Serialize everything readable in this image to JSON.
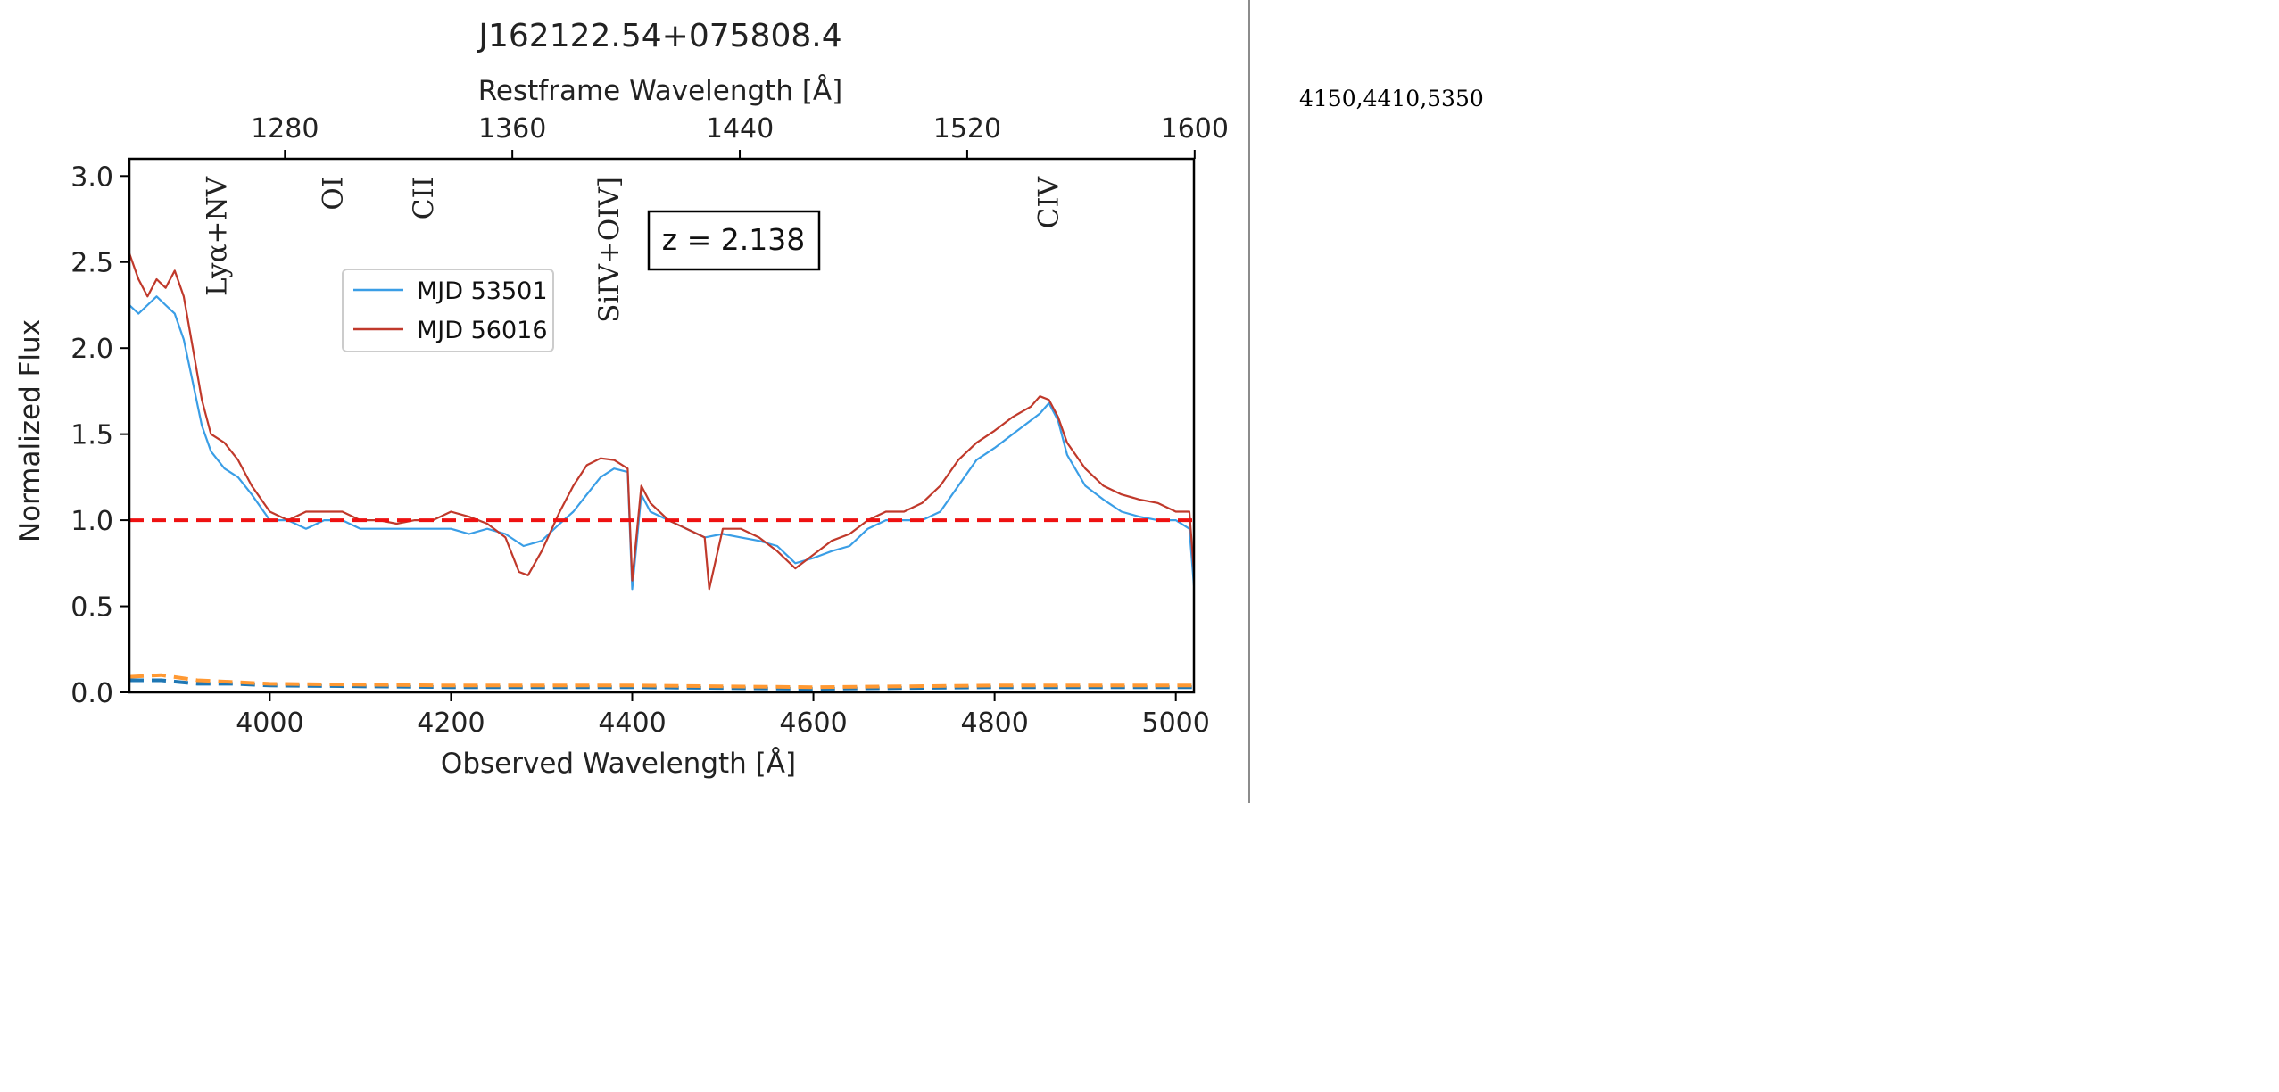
{
  "side_note": "4150,4410,5350",
  "colors": {
    "series_a": "#3a9ee6",
    "series_b": "#c0392b",
    "reference_line": "#ee1111",
    "error_a": "#1f77b4",
    "error_b": "#ff9933"
  },
  "chart_data": {
    "type": "line",
    "title": "J162122.54+075808.4",
    "xlabel": "Observed Wavelength [Å]",
    "ylabel": "Normalized Flux",
    "top_xlabel": "Restframe Wavelength [Å]",
    "redshift_label": "z = 2.138",
    "redshift": 2.138,
    "xlim": [
      3845,
      5020
    ],
    "ylim": [
      0.0,
      3.1
    ],
    "x_ticks": [
      4000,
      4200,
      4400,
      4600,
      4800,
      5000
    ],
    "y_ticks": [
      0.0,
      0.5,
      1.0,
      1.5,
      2.0,
      2.5,
      3.0
    ],
    "top_ticks": [
      1280,
      1360,
      1440,
      1520,
      1600
    ],
    "reference_line": 1.0,
    "legend_position": "upper-left inside",
    "line_labels": [
      {
        "label": "Lyα+NV",
        "x": 3942
      },
      {
        "label": "OI",
        "x": 4070
      },
      {
        "label": "CII",
        "x": 4170
      },
      {
        "label": "SiIV+OIV]",
        "x": 4375
      },
      {
        "label": "CIV",
        "x": 4860
      }
    ],
    "series": [
      {
        "name": "MJD 53501",
        "x": [
          3845,
          3855,
          3865,
          3875,
          3885,
          3895,
          3905,
          3915,
          3925,
          3935,
          3950,
          3965,
          3980,
          4000,
          4020,
          4040,
          4060,
          4080,
          4100,
          4120,
          4140,
          4160,
          4180,
          4200,
          4220,
          4240,
          4260,
          4280,
          4300,
          4320,
          4335,
          4350,
          4365,
          4380,
          4395,
          4400,
          4410,
          4420,
          4440,
          4460,
          4480,
          4500,
          4520,
          4540,
          4560,
          4580,
          4600,
          4620,
          4640,
          4660,
          4680,
          4700,
          4720,
          4740,
          4760,
          4780,
          4800,
          4820,
          4840,
          4850,
          4860,
          4870,
          4880,
          4900,
          4920,
          4940,
          4960,
          4980,
          5000,
          5015,
          5020
        ],
        "y": [
          2.25,
          2.2,
          2.25,
          2.3,
          2.25,
          2.2,
          2.05,
          1.8,
          1.55,
          1.4,
          1.3,
          1.25,
          1.15,
          1.0,
          1.0,
          0.95,
          1.0,
          1.0,
          0.95,
          0.95,
          0.95,
          0.95,
          0.95,
          0.95,
          0.92,
          0.95,
          0.92,
          0.85,
          0.88,
          0.98,
          1.05,
          1.15,
          1.25,
          1.3,
          1.28,
          0.6,
          1.15,
          1.05,
          1.0,
          0.95,
          0.9,
          0.92,
          0.9,
          0.88,
          0.85,
          0.75,
          0.78,
          0.82,
          0.85,
          0.95,
          1.0,
          1.0,
          1.0,
          1.05,
          1.2,
          1.35,
          1.42,
          1.5,
          1.58,
          1.62,
          1.68,
          1.58,
          1.38,
          1.2,
          1.12,
          1.05,
          1.02,
          1.0,
          1.0,
          0.95,
          0.62
        ]
      },
      {
        "name": "MJD 56016",
        "x": [
          3845,
          3855,
          3865,
          3875,
          3885,
          3895,
          3905,
          3915,
          3925,
          3935,
          3950,
          3965,
          3980,
          4000,
          4020,
          4040,
          4060,
          4080,
          4100,
          4120,
          4140,
          4160,
          4180,
          4200,
          4220,
          4240,
          4260,
          4275,
          4285,
          4300,
          4320,
          4335,
          4350,
          4365,
          4380,
          4395,
          4400,
          4410,
          4420,
          4440,
          4460,
          4480,
          4485,
          4500,
          4520,
          4540,
          4560,
          4580,
          4600,
          4620,
          4640,
          4660,
          4680,
          4700,
          4720,
          4740,
          4760,
          4780,
          4800,
          4820,
          4840,
          4850,
          4860,
          4870,
          4880,
          4900,
          4920,
          4940,
          4960,
          4980,
          5000,
          5015,
          5020
        ],
        "y": [
          2.55,
          2.4,
          2.3,
          2.4,
          2.35,
          2.45,
          2.3,
          2.0,
          1.7,
          1.5,
          1.45,
          1.35,
          1.2,
          1.05,
          1.0,
          1.05,
          1.05,
          1.05,
          1.0,
          1.0,
          0.98,
          1.0,
          1.0,
          1.05,
          1.02,
          0.98,
          0.9,
          0.7,
          0.68,
          0.82,
          1.05,
          1.2,
          1.32,
          1.36,
          1.35,
          1.3,
          0.65,
          1.2,
          1.1,
          1.0,
          0.95,
          0.9,
          0.6,
          0.95,
          0.95,
          0.9,
          0.82,
          0.72,
          0.8,
          0.88,
          0.92,
          1.0,
          1.05,
          1.05,
          1.1,
          1.2,
          1.35,
          1.45,
          1.52,
          1.6,
          1.66,
          1.72,
          1.7,
          1.6,
          1.45,
          1.3,
          1.2,
          1.15,
          1.12,
          1.1,
          1.05,
          1.05,
          0.7
        ]
      }
    ],
    "error_series": [
      {
        "x": [
          3845,
          3880,
          3920,
          3960,
          4000,
          4200,
          4400,
          4600,
          4800,
          5020
        ],
        "y": [
          0.07,
          0.07,
          0.05,
          0.05,
          0.04,
          0.03,
          0.03,
          0.02,
          0.03,
          0.03
        ]
      },
      {
        "x": [
          3845,
          3880,
          3920,
          3960,
          4000,
          4200,
          4400,
          4600,
          4800,
          5020
        ],
        "y": [
          0.09,
          0.1,
          0.07,
          0.06,
          0.05,
          0.04,
          0.04,
          0.03,
          0.04,
          0.04
        ]
      }
    ]
  }
}
